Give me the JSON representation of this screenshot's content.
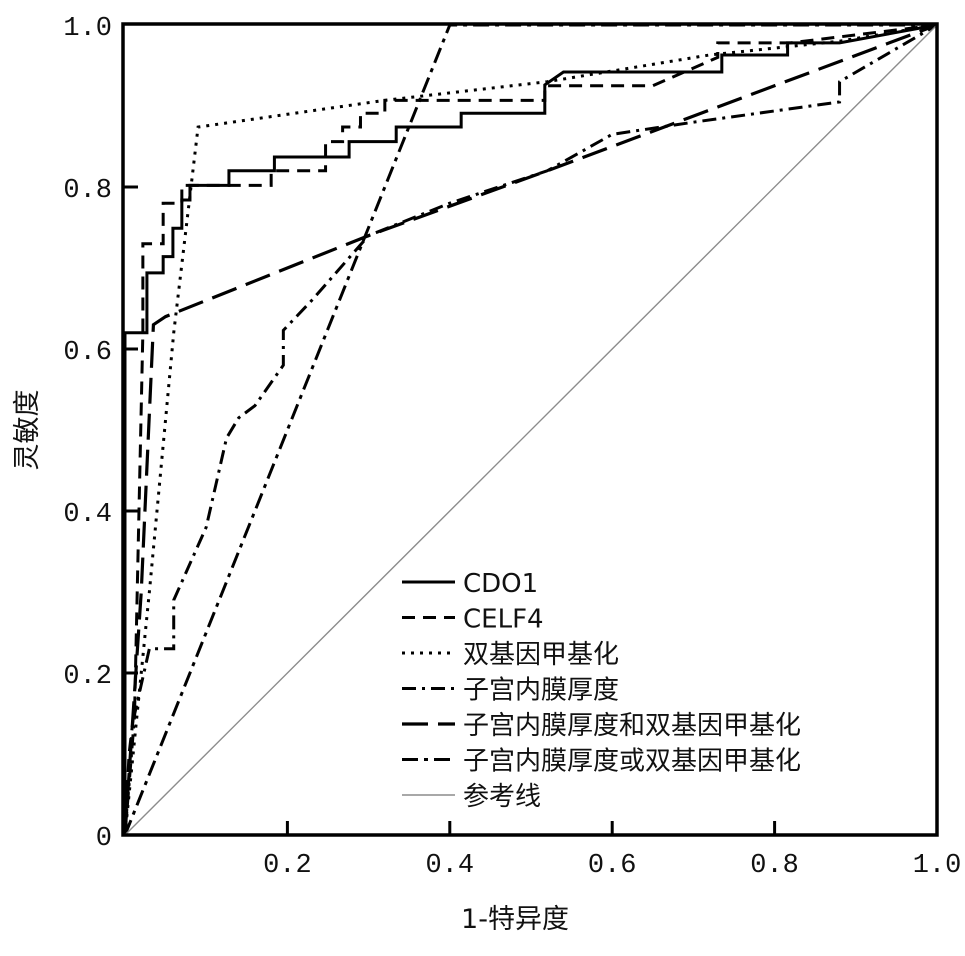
{
  "chart_data": {
    "type": "line",
    "title": "",
    "xlabel": "1-特异度",
    "ylabel": "灵敏度",
    "xlim": [
      0,
      1
    ],
    "ylim": [
      0,
      1
    ],
    "xticks": [
      "0.2",
      "0.4",
      "0.6",
      "0.8",
      "1.0"
    ],
    "xtick_values": [
      0.2,
      0.4,
      0.6,
      0.8,
      1.0
    ],
    "yticks": [
      "0",
      "0.2",
      "0.4",
      "0.6",
      "0.8",
      "1.0"
    ],
    "ytick_values": [
      0,
      0.2,
      0.4,
      0.6,
      0.8,
      1.0
    ],
    "grid": false,
    "legend_position": "bottom-right",
    "series": [
      {
        "name": "CDO1",
        "style": "solid",
        "color": "#000000",
        "points": [
          [
            0,
            0
          ],
          [
            0,
            0.62
          ],
          [
            0.027,
            0.62
          ],
          [
            0.027,
            0.694
          ],
          [
            0.047,
            0.694
          ],
          [
            0.047,
            0.714
          ],
          [
            0.059,
            0.714
          ],
          [
            0.059,
            0.749
          ],
          [
            0.07,
            0.749
          ],
          [
            0.07,
            0.784
          ],
          [
            0.08,
            0.784
          ],
          [
            0.08,
            0.802
          ],
          [
            0.128,
            0.802
          ],
          [
            0.128,
            0.82
          ],
          [
            0.184,
            0.82
          ],
          [
            0.184,
            0.837
          ],
          [
            0.276,
            0.837
          ],
          [
            0.276,
            0.856
          ],
          [
            0.334,
            0.856
          ],
          [
            0.334,
            0.874
          ],
          [
            0.414,
            0.874
          ],
          [
            0.414,
            0.891
          ],
          [
            0.517,
            0.891
          ],
          [
            0.517,
            0.926
          ],
          [
            0.54,
            0.942
          ],
          [
            0.735,
            0.942
          ],
          [
            0.735,
            0.963
          ],
          [
            0.816,
            0.963
          ],
          [
            0.816,
            0.978
          ],
          [
            0.88,
            0.978
          ],
          [
            1,
            1
          ]
        ]
      },
      {
        "name": "CELF4",
        "style": "dashed",
        "color": "#000000",
        "points": [
          [
            0,
            0
          ],
          [
            0.005,
            0.1
          ],
          [
            0.012,
            0.16
          ],
          [
            0.022,
            0.62
          ],
          [
            0.022,
            0.73
          ],
          [
            0.047,
            0.73
          ],
          [
            0.047,
            0.78
          ],
          [
            0.07,
            0.78
          ],
          [
            0.07,
            0.802
          ],
          [
            0.18,
            0.802
          ],
          [
            0.18,
            0.82
          ],
          [
            0.247,
            0.82
          ],
          [
            0.247,
            0.856
          ],
          [
            0.268,
            0.856
          ],
          [
            0.268,
            0.874
          ],
          [
            0.29,
            0.874
          ],
          [
            0.29,
            0.891
          ],
          [
            0.32,
            0.891
          ],
          [
            0.32,
            0.907
          ],
          [
            0.517,
            0.907
          ],
          [
            0.517,
            0.925
          ],
          [
            0.65,
            0.925
          ],
          [
            0.73,
            0.96
          ],
          [
            0.73,
            0.978
          ],
          [
            0.82,
            0.978
          ],
          [
            1,
            1
          ]
        ]
      },
      {
        "name": "双基因甲基化",
        "style": "dotted",
        "color": "#000000",
        "points": [
          [
            0,
            0
          ],
          [
            0.03,
            0.3
          ],
          [
            0.06,
            0.62
          ],
          [
            0.09,
            0.874
          ],
          [
            0.32,
            0.907
          ],
          [
            0.52,
            0.93
          ],
          [
            0.72,
            0.963
          ],
          [
            0.88,
            0.98
          ],
          [
            1,
            1
          ]
        ]
      },
      {
        "name": "子宫内膜厚度",
        "style": "dashdot",
        "color": "#000000",
        "points": [
          [
            0,
            0
          ],
          [
            0.012,
            0.15
          ],
          [
            0.03,
            0.23
          ],
          [
            0.06,
            0.23
          ],
          [
            0.06,
            0.29
          ],
          [
            0.1,
            0.38
          ],
          [
            0.125,
            0.49
          ],
          [
            0.14,
            0.515
          ],
          [
            0.16,
            0.53
          ],
          [
            0.195,
            0.58
          ],
          [
            0.195,
            0.623
          ],
          [
            0.23,
            0.66
          ],
          [
            0.3,
            0.74
          ],
          [
            0.4,
            0.78
          ],
          [
            0.52,
            0.82
          ],
          [
            0.6,
            0.865
          ],
          [
            0.7,
            0.88
          ],
          [
            0.88,
            0.905
          ],
          [
            0.88,
            0.93
          ],
          [
            1,
            1
          ]
        ]
      },
      {
        "name": "子宫内膜厚度和双基因甲基化",
        "style": "longdash",
        "color": "#000000",
        "points": [
          [
            0,
            0
          ],
          [
            0.02,
            0.3
          ],
          [
            0.035,
            0.63
          ],
          [
            0.05,
            0.64
          ],
          [
            0.3,
            0.74
          ],
          [
            0.52,
            0.82
          ],
          [
            1,
            1
          ]
        ]
      },
      {
        "name": "子宫内膜厚度或双基因甲基化",
        "style": "dashdot2",
        "color": "#000000",
        "points": [
          [
            0,
            0
          ],
          [
            0.4,
            1
          ],
          [
            1,
            1
          ]
        ]
      },
      {
        "name": "参考线",
        "style": "thin",
        "color": "#8c8c8c",
        "points": [
          [
            0,
            0
          ],
          [
            1,
            1
          ]
        ]
      }
    ]
  }
}
